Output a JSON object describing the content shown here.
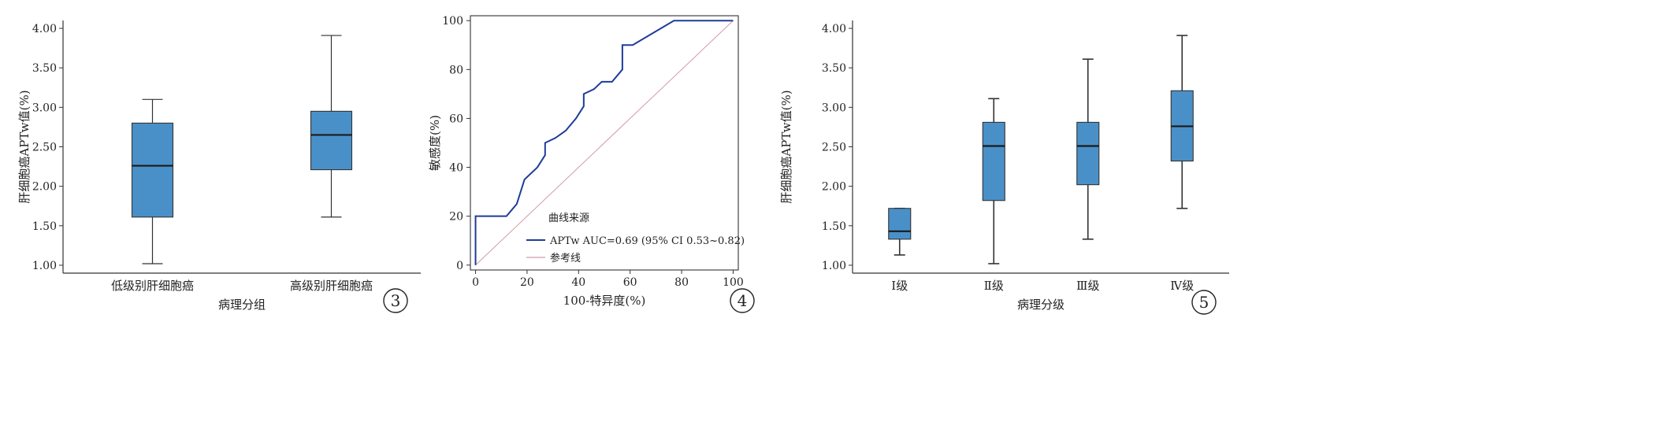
{
  "chart_data": [
    {
      "type": "box",
      "xlabel": "病理分组",
      "ylabel": "肝细胞癌APTw值(%)",
      "ylim": [
        0.9,
        4.1
      ],
      "yticks": [
        "1.00",
        "1.50",
        "2.00",
        "2.50",
        "3.00",
        "3.50",
        "4.00"
      ],
      "categories": [
        "低级别肝细胞癌",
        "高级别肝细胞癌"
      ],
      "boxes": [
        {
          "whisker_low": 1.02,
          "q1": 1.61,
          "median": 2.26,
          "q3": 2.8,
          "whisker_high": 3.1
        },
        {
          "whisker_low": 1.61,
          "q1": 2.21,
          "median": 2.65,
          "q3": 2.95,
          "whisker_high": 3.91
        }
      ],
      "color": "#4a90c8",
      "panel_label": "3"
    },
    {
      "type": "line",
      "xlabel": "100-特异度(%)",
      "ylabel": "敏感度(%)",
      "xlim": [
        -2,
        102
      ],
      "ylim": [
        -2,
        102
      ],
      "xticks": [
        "0",
        "20",
        "40",
        "60",
        "80",
        "100"
      ],
      "yticks": [
        "0",
        "20",
        "40",
        "60",
        "80",
        "100"
      ],
      "legend_title": "曲线来源",
      "legend_position": "lower-right",
      "series": [
        {
          "name": "APTw AUC=0.69 (95% CI 0.53~0.82)",
          "color": "#1f3c99",
          "x": [
            0,
            0,
            0,
            12,
            16,
            19,
            24,
            27,
            27,
            31,
            35,
            39,
            42,
            42,
            46,
            49,
            53,
            57,
            57,
            61,
            69,
            77,
            100
          ],
          "y": [
            0,
            0,
            20,
            20,
            25,
            35,
            40,
            45,
            50,
            52,
            55,
            60,
            65,
            70,
            72,
            75,
            75,
            80,
            90,
            90,
            95,
            100,
            100
          ]
        },
        {
          "name": "参考线",
          "color": "#d49aa8",
          "x": [
            0,
            100
          ],
          "y": [
            0,
            100
          ]
        }
      ],
      "panel_label": "4"
    },
    {
      "type": "box",
      "xlabel": "病理分级",
      "ylabel": "肝细胞癌APTw值(%)",
      "ylim": [
        0.9,
        4.1
      ],
      "yticks": [
        "1.00",
        "1.50",
        "2.00",
        "2.50",
        "3.00",
        "3.50",
        "4.00"
      ],
      "categories": [
        "Ⅰ级",
        "Ⅱ级",
        "Ⅲ级",
        "Ⅳ级"
      ],
      "boxes": [
        {
          "whisker_low": 1.13,
          "q1": 1.33,
          "median": 1.43,
          "q3": 1.72,
          "whisker_high": 1.72
        },
        {
          "whisker_low": 1.02,
          "q1": 1.82,
          "median": 2.51,
          "q3": 2.81,
          "whisker_high": 3.11
        },
        {
          "whisker_low": 1.33,
          "q1": 2.02,
          "median": 2.51,
          "q3": 2.81,
          "whisker_high": 3.61
        },
        {
          "whisker_low": 1.72,
          "q1": 2.32,
          "median": 2.76,
          "q3": 3.21,
          "whisker_high": 3.91
        }
      ],
      "color": "#4a90c8",
      "panel_label": "5"
    }
  ]
}
